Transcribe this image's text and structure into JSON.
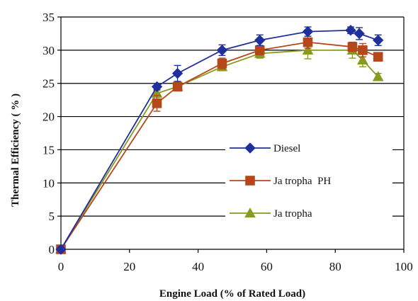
{
  "chart_data": {
    "type": "line",
    "title": "",
    "xlabel": "Engine Load (% of Rated Load)",
    "ylabel": "Thermal Efficiency ( % )",
    "xlim": [
      0,
      100
    ],
    "ylim": [
      0,
      35
    ],
    "x_ticks": [
      0,
      20,
      40,
      60,
      80,
      100
    ],
    "y_ticks": [
      0,
      5,
      10,
      15,
      20,
      25,
      30,
      35
    ],
    "grid": "horizontal major gridlines",
    "legend_position": "center-right",
    "series": [
      {
        "name": "Diesel",
        "marker": "diamond",
        "color": "#1f2f9e",
        "x": [
          0,
          28,
          34,
          47,
          58,
          72,
          84.5,
          87,
          92.5
        ],
        "y": [
          0,
          24.5,
          26.5,
          30,
          31.5,
          32.8,
          33,
          32.5,
          31.5
        ],
        "error": [
          0,
          0.5,
          1.2,
          0.8,
          0.8,
          0.7,
          0.5,
          0.9,
          0.8
        ]
      },
      {
        "name": "Ja tropha  PH",
        "marker": "square",
        "color": "#b5471b",
        "x": [
          0,
          28,
          34,
          47,
          58,
          72,
          85,
          88,
          92.5
        ],
        "y": [
          0,
          22,
          24.5,
          28,
          30,
          31.2,
          30.5,
          30,
          29
        ],
        "error": [
          0,
          1.2,
          0.6,
          0.8,
          0.7,
          0.9,
          0.7,
          1.0,
          0.6
        ]
      },
      {
        "name": "Ja tropha",
        "marker": "triangle",
        "color": "#8a9a1c",
        "x": [
          0,
          28,
          34,
          47,
          58,
          72,
          85,
          88,
          92.5
        ],
        "y": [
          0,
          23.5,
          24.5,
          27.5,
          29.5,
          30,
          30,
          28.5,
          26
        ],
        "error": [
          0,
          0.6,
          0.6,
          0.6,
          0.7,
          1.3,
          1.2,
          1.0,
          0.5
        ]
      }
    ]
  }
}
